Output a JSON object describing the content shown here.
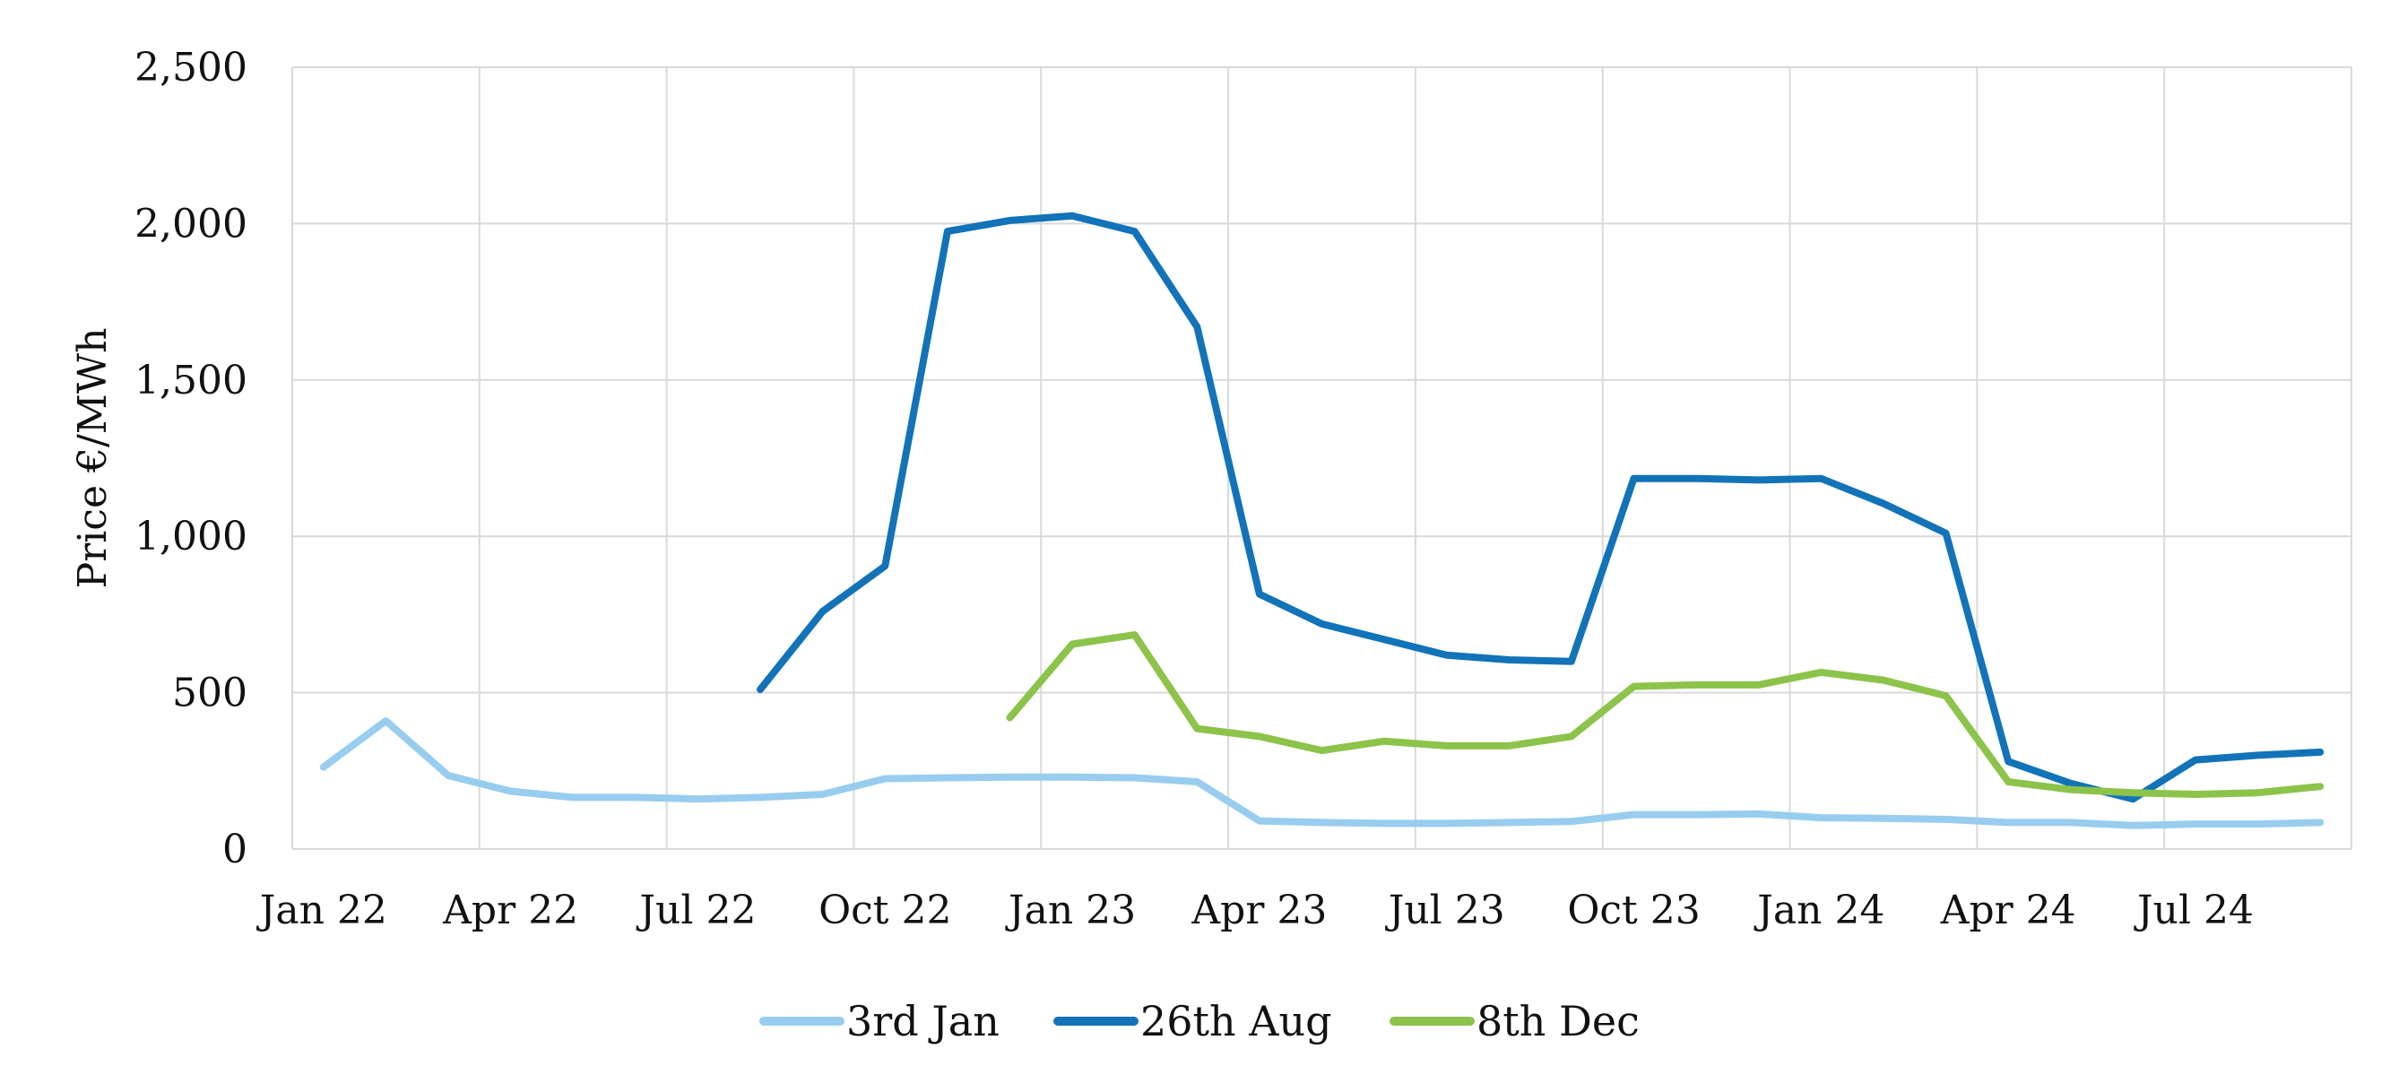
{
  "chart_data": {
    "type": "line",
    "title": "",
    "xlabel": "",
    "ylabel": "Price €/MWh",
    "ylim": [
      0,
      2500
    ],
    "yticks": [
      "0",
      "500",
      "1,000",
      "1,500",
      "2,000",
      "2,500"
    ],
    "ytick_values": [
      0,
      500,
      1000,
      1500,
      2000,
      2500
    ],
    "grid": true,
    "legend_position": "bottom",
    "months": [
      "Jan 22",
      "Feb 22",
      "Mar 22",
      "Apr 22",
      "May 22",
      "Jun 22",
      "Jul 22",
      "Aug 22",
      "Sep 22",
      "Oct 22",
      "Nov 22",
      "Dec 22",
      "Jan 23",
      "Feb 23",
      "Mar 23",
      "Apr 23",
      "May 23",
      "Jun 23",
      "Jul 23",
      "Aug 23",
      "Sep 23",
      "Oct 23",
      "Nov 23",
      "Dec 23",
      "Jan 24",
      "Feb 24",
      "Mar 24",
      "Apr 24",
      "May 24",
      "Jun 24",
      "Jul 24",
      "Aug 24",
      "Sep 24"
    ],
    "xtick_labels": [
      "Jan 22",
      "Apr 22",
      "Jul 22",
      "Oct 22",
      "Jan 23",
      "Apr 23",
      "Jul 23",
      "Oct 23",
      "Jan 24",
      "Apr 24",
      "Jul 24"
    ],
    "series": [
      {
        "name": "3rd Jan",
        "color": "#98CDEF",
        "start_index": 0,
        "values": [
          262,
          410,
          235,
          185,
          165,
          165,
          160,
          165,
          175,
          225,
          228,
          230,
          230,
          228,
          215,
          90,
          85,
          82,
          82,
          85,
          88,
          110,
          110,
          112,
          100,
          98,
          95,
          85,
          85,
          75,
          80,
          80,
          85
        ]
      },
      {
        "name": "26th Aug",
        "color": "#1273B9",
        "start_index": 7,
        "values": [
          510,
          760,
          905,
          1975,
          2010,
          2025,
          1975,
          1670,
          815,
          720,
          670,
          620,
          605,
          600,
          1185,
          1185,
          1180,
          1185,
          1105,
          1010,
          280,
          210,
          160,
          285,
          300,
          310
        ]
      },
      {
        "name": "8th Dec",
        "color": "#8CC34A",
        "start_index": 11,
        "values": [
          420,
          655,
          685,
          385,
          360,
          315,
          345,
          330,
          330,
          360,
          520,
          525,
          525,
          565,
          540,
          490,
          215,
          190,
          180,
          175,
          180,
          200
        ]
      }
    ]
  }
}
